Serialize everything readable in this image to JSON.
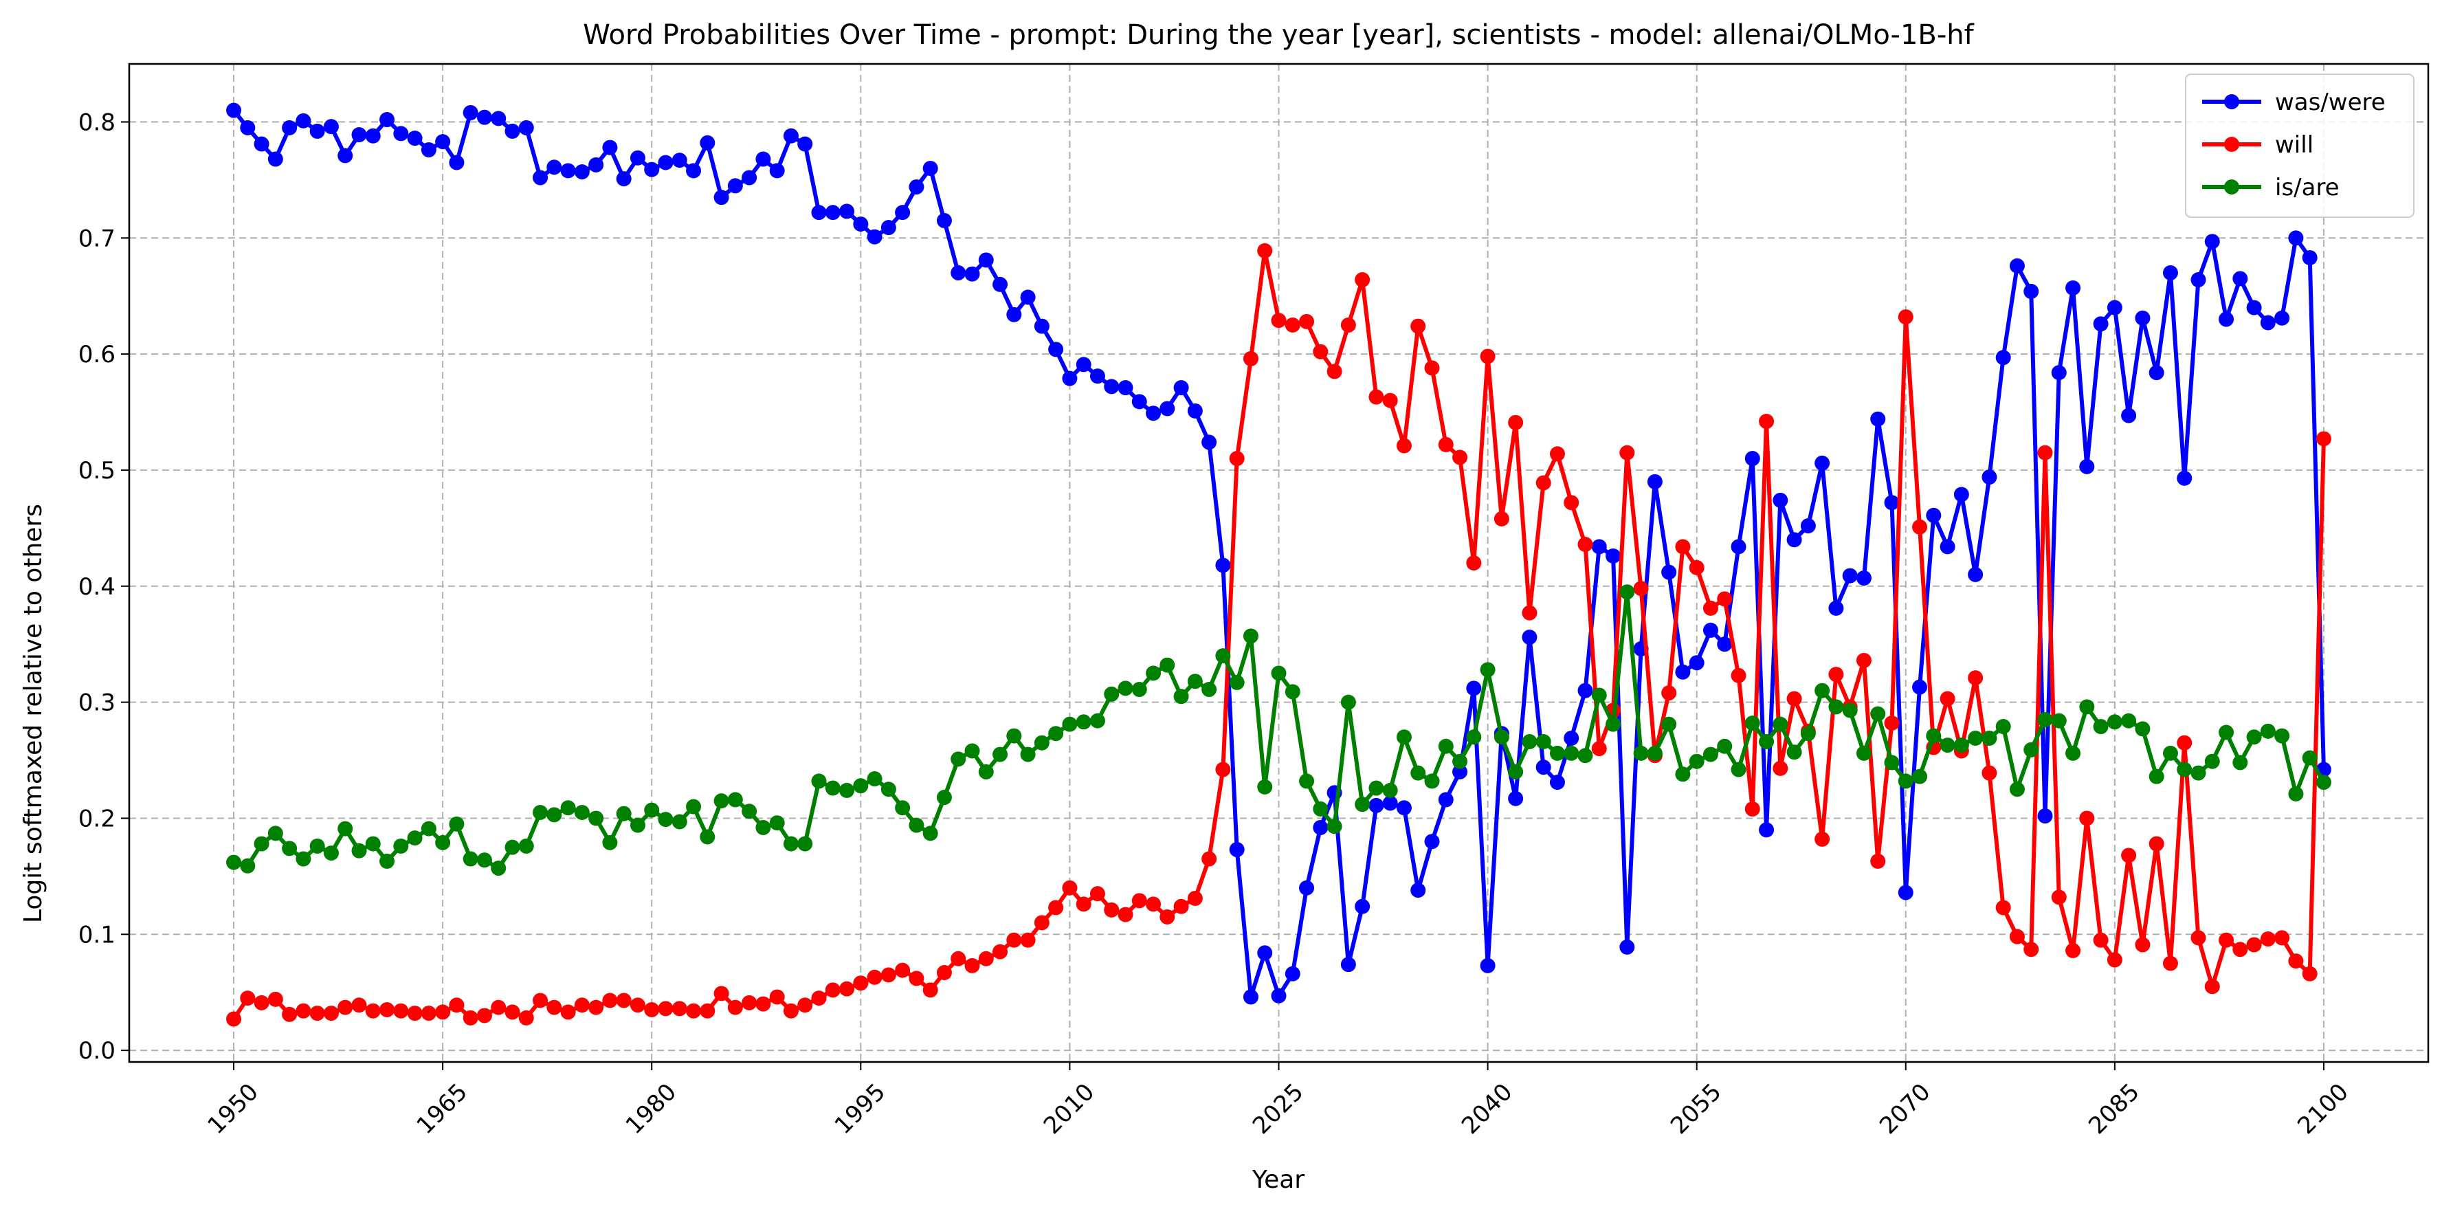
{
  "chart_data": {
    "type": "line",
    "title": "Word Probabilities Over Time - prompt: During the year [year], scientists - model: allenai/OLMo-1B-hf",
    "xlabel": "Year",
    "ylabel": "Logit softmaxed relative to others",
    "xlim": [
      1942.5,
      2107.5
    ],
    "ylim": [
      -0.01,
      0.85
    ],
    "x_ticks": [
      "1950",
      "1965",
      "1980",
      "1995",
      "2010",
      "2025",
      "2040",
      "2055",
      "2070",
      "2085",
      "2100"
    ],
    "y_ticks": [
      "0.0",
      "0.1",
      "0.2",
      "0.3",
      "0.4",
      "0.5",
      "0.6",
      "0.7",
      "0.8"
    ],
    "grid": true,
    "legend_position": "top-right",
    "x_start": 1950,
    "x_end": 2100,
    "series": [
      {
        "name": "was/were",
        "color": "#0000ff",
        "values": [
          0.81,
          0.795,
          0.781,
          0.768,
          0.795,
          0.801,
          0.792,
          0.796,
          0.771,
          0.789,
          0.788,
          0.802,
          0.79,
          0.786,
          0.776,
          0.783,
          0.765,
          0.808,
          0.804,
          0.803,
          0.792,
          0.795,
          0.752,
          0.761,
          0.758,
          0.757,
          0.763,
          0.778,
          0.751,
          0.769,
          0.759,
          0.765,
          0.767,
          0.758,
          0.782,
          0.735,
          0.745,
          0.752,
          0.768,
          0.758,
          0.788,
          0.781,
          0.722,
          0.722,
          0.723,
          0.712,
          0.701,
          0.709,
          0.722,
          0.744,
          0.76,
          0.715,
          0.67,
          0.669,
          0.681,
          0.66,
          0.634,
          0.649,
          0.624,
          0.604,
          0.579,
          0.591,
          0.581,
          0.572,
          0.571,
          0.559,
          0.549,
          0.553,
          0.571,
          0.551,
          0.524,
          0.418,
          0.173,
          0.046,
          0.084,
          0.047,
          0.066,
          0.14,
          0.192,
          0.222,
          0.074,
          0.124,
          0.211,
          0.213,
          0.209,
          0.138,
          0.18,
          0.216,
          0.24,
          0.312,
          0.073,
          0.273,
          0.217,
          0.356,
          0.244,
          0.231,
          0.269,
          0.31,
          0.434,
          0.426,
          0.089,
          0.346,
          0.49,
          0.412,
          0.326,
          0.334,
          0.362,
          0.35,
          0.434,
          0.51,
          0.19,
          0.474,
          0.44,
          0.452,
          0.506,
          0.381,
          0.409,
          0.407,
          0.544,
          0.472,
          0.136,
          0.313,
          0.461,
          0.434,
          0.479,
          0.41,
          0.494,
          0.597,
          0.676,
          0.654,
          0.202,
          0.584,
          0.657,
          0.503,
          0.626,
          0.64,
          0.547,
          0.631,
          0.584,
          0.67,
          0.493,
          0.664,
          0.697,
          0.63,
          0.665,
          0.64,
          0.627,
          0.631,
          0.7,
          0.683,
          0.242
        ]
      },
      {
        "name": "will",
        "color": "#ff0000",
        "values": [
          0.027,
          0.045,
          0.041,
          0.044,
          0.031,
          0.034,
          0.032,
          0.032,
          0.037,
          0.039,
          0.034,
          0.035,
          0.034,
          0.032,
          0.032,
          0.033,
          0.039,
          0.028,
          0.03,
          0.037,
          0.033,
          0.028,
          0.043,
          0.037,
          0.033,
          0.039,
          0.037,
          0.043,
          0.043,
          0.039,
          0.035,
          0.036,
          0.036,
          0.034,
          0.034,
          0.049,
          0.037,
          0.041,
          0.04,
          0.046,
          0.034,
          0.039,
          0.045,
          0.052,
          0.053,
          0.058,
          0.063,
          0.065,
          0.069,
          0.062,
          0.052,
          0.067,
          0.079,
          0.073,
          0.079,
          0.085,
          0.095,
          0.095,
          0.11,
          0.123,
          0.14,
          0.126,
          0.135,
          0.121,
          0.117,
          0.129,
          0.126,
          0.115,
          0.124,
          0.131,
          0.165,
          0.242,
          0.51,
          0.596,
          0.689,
          0.629,
          0.625,
          0.628,
          0.602,
          0.585,
          0.625,
          0.664,
          0.563,
          0.56,
          0.521,
          0.624,
          0.588,
          0.522,
          0.511,
          0.42,
          0.598,
          0.458,
          0.541,
          0.377,
          0.489,
          0.514,
          0.472,
          0.436,
          0.26,
          0.293,
          0.515,
          0.398,
          0.254,
          0.308,
          0.434,
          0.416,
          0.381,
          0.389,
          0.323,
          0.208,
          0.542,
          0.243,
          0.303,
          0.275,
          0.182,
          0.324,
          0.296,
          0.336,
          0.163,
          0.282,
          0.632,
          0.451,
          0.261,
          0.303,
          0.258,
          0.321,
          0.239,
          0.123,
          0.098,
          0.087,
          0.515,
          0.132,
          0.086,
          0.2,
          0.095,
          0.078,
          0.168,
          0.091,
          0.178,
          0.075,
          0.265,
          0.097,
          0.055,
          0.095,
          0.087,
          0.091,
          0.096,
          0.097,
          0.077,
          0.066,
          0.527
        ]
      },
      {
        "name": "is/are",
        "color": "#008000",
        "values": [
          0.162,
          0.159,
          0.178,
          0.187,
          0.174,
          0.165,
          0.176,
          0.17,
          0.191,
          0.172,
          0.178,
          0.163,
          0.176,
          0.183,
          0.191,
          0.179,
          0.195,
          0.165,
          0.164,
          0.157,
          0.175,
          0.176,
          0.205,
          0.203,
          0.209,
          0.205,
          0.2,
          0.179,
          0.204,
          0.194,
          0.207,
          0.199,
          0.197,
          0.21,
          0.184,
          0.215,
          0.216,
          0.206,
          0.192,
          0.196,
          0.178,
          0.178,
          0.232,
          0.226,
          0.224,
          0.228,
          0.234,
          0.225,
          0.209,
          0.194,
          0.187,
          0.218,
          0.251,
          0.258,
          0.24,
          0.255,
          0.271,
          0.255,
          0.265,
          0.273,
          0.281,
          0.283,
          0.284,
          0.307,
          0.312,
          0.311,
          0.325,
          0.332,
          0.305,
          0.318,
          0.311,
          0.34,
          0.317,
          0.357,
          0.227,
          0.325,
          0.309,
          0.232,
          0.208,
          0.193,
          0.3,
          0.212,
          0.226,
          0.224,
          0.27,
          0.239,
          0.232,
          0.262,
          0.249,
          0.27,
          0.328,
          0.27,
          0.24,
          0.266,
          0.266,
          0.256,
          0.256,
          0.254,
          0.306,
          0.281,
          0.395,
          0.256,
          0.256,
          0.281,
          0.238,
          0.249,
          0.255,
          0.262,
          0.242,
          0.282,
          0.266,
          0.281,
          0.257,
          0.273,
          0.31,
          0.296,
          0.293,
          0.256,
          0.29,
          0.248,
          0.232,
          0.236,
          0.271,
          0.263,
          0.263,
          0.269,
          0.269,
          0.279,
          0.225,
          0.259,
          0.285,
          0.284,
          0.256,
          0.296,
          0.279,
          0.283,
          0.284,
          0.277,
          0.236,
          0.256,
          0.242,
          0.239,
          0.249,
          0.274,
          0.248,
          0.27,
          0.275,
          0.271,
          0.221,
          0.252,
          0.231
        ]
      }
    ]
  }
}
